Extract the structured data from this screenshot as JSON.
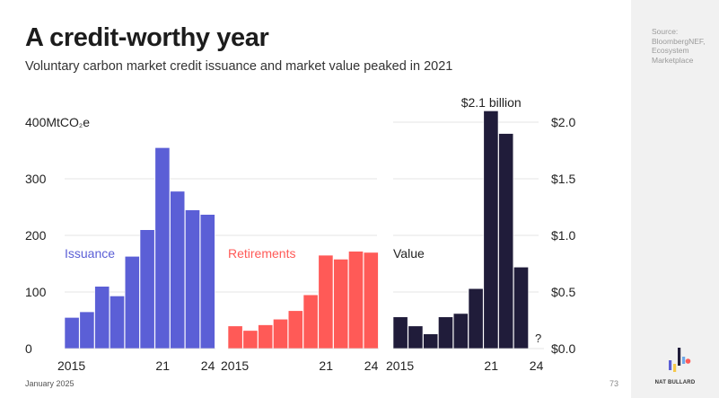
{
  "title": "A credit-worthy year",
  "subtitle": "Voluntary carbon market credit issuance and market value peaked in 2021",
  "source": [
    "Source:",
    "BloombergNEF,",
    "Ecosystem",
    "Marketplace"
  ],
  "footer": {
    "date": "January 2025",
    "page": "73"
  },
  "brand": "NAT BULLARD",
  "colors": {
    "issuance": "#5b5fd6",
    "retirements": "#ff5a57",
    "value": "#201c3a",
    "grid": "#dddddd"
  },
  "chart_data": [
    {
      "type": "bar",
      "name": "Issuance",
      "label": "Issuance",
      "x": [
        2015,
        2016,
        2017,
        2018,
        2019,
        2020,
        2021,
        2022,
        2023,
        2024
      ],
      "values": [
        55,
        65,
        110,
        93,
        163,
        210,
        355,
        278,
        245,
        237
      ],
      "x_tick_labels": [
        "2015",
        "21",
        "24"
      ],
      "ylabel": "MtCO₂e",
      "ylim": [
        0,
        400
      ],
      "y_ticks": [
        0,
        100,
        200,
        300,
        400
      ],
      "y_tick_labels": [
        "0",
        "100",
        "200",
        "300",
        "400MtCO₂e"
      ],
      "grid": true
    },
    {
      "type": "bar",
      "name": "Retirements",
      "label": "Retirements",
      "x": [
        2015,
        2016,
        2017,
        2018,
        2019,
        2020,
        2021,
        2022,
        2023,
        2024
      ],
      "values": [
        40,
        32,
        42,
        52,
        67,
        95,
        165,
        158,
        172,
        170
      ],
      "x_tick_labels": [
        "2015",
        "21",
        "24"
      ],
      "ylim": [
        0,
        400
      ],
      "grid": true
    },
    {
      "type": "bar",
      "name": "Value",
      "label": "Value",
      "x": [
        2015,
        2016,
        2017,
        2018,
        2019,
        2020,
        2021,
        2022,
        2023,
        2024
      ],
      "values": [
        0.28,
        0.2,
        0.13,
        0.28,
        0.31,
        0.53,
        2.1,
        1.9,
        0.72,
        null
      ],
      "x_tick_labels": [
        "2015",
        "21",
        "24"
      ],
      "ylim": [
        0,
        2.0
      ],
      "y_ticks": [
        0,
        0.5,
        1.0,
        1.5,
        2.0
      ],
      "y_tick_labels": [
        "$0.0",
        "$0.5",
        "$1.0",
        "$1.5",
        "$2.0"
      ],
      "annotations": [
        {
          "text": "$2.1 billion",
          "x": 2021
        },
        {
          "text": "?",
          "x": 2024
        }
      ],
      "grid": true
    }
  ]
}
